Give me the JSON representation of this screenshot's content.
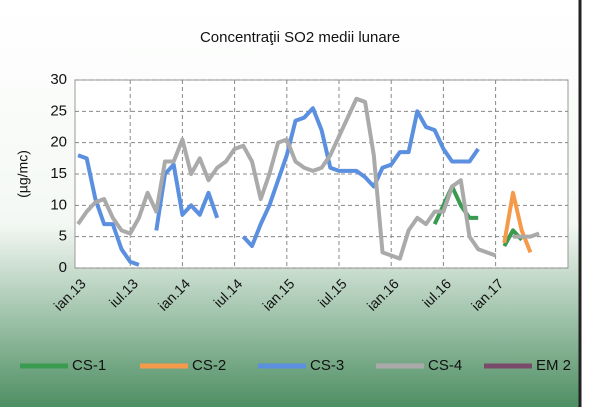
{
  "chart_data": {
    "type": "line",
    "title": "Concentraţii SO2  medii lunare",
    "y_label": "(µg/mc)",
    "categories": [
      "ian.13",
      null,
      null,
      null,
      null,
      null,
      "iul.13",
      null,
      null,
      null,
      null,
      null,
      "ian.14",
      null,
      null,
      null,
      null,
      null,
      "iul.14",
      null,
      null,
      null,
      null,
      null,
      "ian.15",
      null,
      null,
      null,
      null,
      null,
      "iul.15",
      null,
      null,
      null,
      null,
      null,
      "ian.16",
      null,
      null,
      null,
      null,
      null,
      "iul.16",
      null,
      null,
      null,
      null,
      null,
      "ian.17",
      null,
      null,
      null,
      null,
      null,
      null,
      null,
      null
    ],
    "series": [
      {
        "name": "CS-1",
        "color": "#3a9a50",
        "values": [
          null,
          null,
          null,
          null,
          null,
          null,
          null,
          null,
          null,
          null,
          null,
          null,
          null,
          null,
          null,
          null,
          null,
          null,
          null,
          null,
          null,
          null,
          null,
          null,
          null,
          null,
          null,
          null,
          null,
          null,
          null,
          null,
          null,
          null,
          null,
          null,
          null,
          null,
          null,
          null,
          null,
          7,
          10,
          13,
          10,
          8,
          8,
          null,
          null,
          3.5,
          6,
          4.5,
          null,
          null,
          null,
          null,
          null
        ]
      },
      {
        "name": "CS-2",
        "color": "#f59a4a",
        "values": [
          null,
          null,
          null,
          null,
          null,
          null,
          null,
          null,
          null,
          null,
          null,
          null,
          null,
          null,
          null,
          null,
          null,
          null,
          null,
          null,
          null,
          null,
          null,
          null,
          null,
          null,
          null,
          null,
          null,
          null,
          null,
          null,
          null,
          null,
          null,
          null,
          null,
          null,
          null,
          null,
          null,
          null,
          null,
          null,
          null,
          null,
          null,
          null,
          null,
          4,
          12,
          6,
          2.5,
          null,
          null,
          null,
          null
        ]
      },
      {
        "name": "CS-3",
        "color": "#5b8fe0",
        "values": [
          18,
          17.5,
          11,
          7,
          7,
          3,
          1,
          0.5,
          null,
          6,
          15,
          16.5,
          8.5,
          10,
          8.5,
          12,
          8,
          null,
          null,
          5,
          3.5,
          7,
          10,
          14,
          18,
          23.5,
          24,
          25.5,
          22,
          16,
          15.5,
          15.5,
          15.5,
          14.5,
          13,
          16,
          16.5,
          18.5,
          18.5,
          25,
          22.5,
          22,
          19,
          17,
          17,
          17,
          19,
          null,
          null,
          null,
          null,
          null,
          null,
          null,
          null,
          null,
          null
        ]
      },
      {
        "name": "CS-4",
        "color": "#aaaaaa",
        "values": [
          7,
          9,
          10.5,
          11,
          8,
          6,
          5.5,
          8,
          12,
          9,
          17,
          17,
          20.5,
          15,
          17.5,
          14,
          16,
          17,
          19,
          19.5,
          17,
          11,
          15,
          20,
          20.5,
          17,
          16,
          15.5,
          16,
          18,
          21,
          24,
          27,
          26.5,
          18,
          2.5,
          2,
          1.5,
          6,
          8,
          7,
          9,
          9,
          13,
          14,
          5,
          3,
          2.5,
          2,
          null,
          5,
          5,
          5,
          5.5,
          null,
          null,
          null
        ]
      },
      {
        "name": "EM 2",
        "color": "#7a4a6a",
        "values": [
          null,
          null,
          null,
          null,
          null,
          null,
          null,
          null,
          null,
          null,
          null,
          null,
          null,
          null,
          null,
          null,
          null,
          null,
          null,
          null,
          null,
          null,
          null,
          null,
          null,
          null,
          null,
          null,
          null,
          null,
          null,
          null,
          null,
          null,
          null,
          null,
          null,
          null,
          null,
          null,
          null,
          null,
          null,
          null,
          null,
          null,
          null,
          null,
          null,
          null,
          null,
          null,
          null,
          null,
          null,
          null,
          null
        ]
      }
    ],
    "ylim": [
      0,
      30
    ],
    "yticks": [
      0,
      5,
      10,
      15,
      20,
      25,
      30
    ],
    "grid": true
  }
}
